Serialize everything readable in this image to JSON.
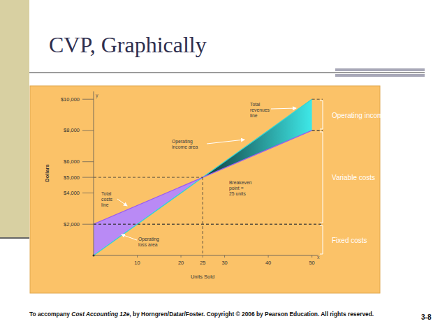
{
  "title": "CVP, Graphically",
  "footer": {
    "lead": "To accompany ",
    "italic": "Cost Accounting 12e",
    "rest": ", by Horngren/Datar/Foster. Copyright © 2006 by Pearson Education. All rights reserved."
  },
  "page_number": "3-8",
  "chart_data": {
    "type": "line",
    "x_label": "Units Sold",
    "y_label": "Dollars",
    "x_axis_symbol": "x",
    "y_axis_symbol": "y",
    "x": [
      0,
      25,
      50
    ],
    "series": [
      {
        "name": "Total revenues line",
        "color": "#2fd6d6",
        "values": [
          0,
          5000,
          10000
        ]
      },
      {
        "name": "Total costs line",
        "color": "#9a5cf0",
        "values": [
          2000,
          5000,
          8000
        ]
      }
    ],
    "areas": [
      {
        "name": "Operating loss area",
        "color": "#b98af5"
      },
      {
        "name": "Operating income area",
        "color": "#3ee8e8"
      }
    ],
    "breakeven": {
      "label": "Breakeven point = 25 units",
      "x": 25,
      "y": 5000
    },
    "brackets": [
      {
        "label": "Operating income",
        "from": 8000,
        "to": 10000
      },
      {
        "label": "Variable costs",
        "from": 2000,
        "to": 8000
      },
      {
        "label": "Fixed costs",
        "from": 0,
        "to": 2000
      }
    ],
    "xlim": [
      0,
      51.5
    ],
    "ylim": [
      0,
      10500
    ],
    "xticks": [
      10,
      20,
      25,
      30,
      40,
      50
    ],
    "yticks": [
      {
        "value": 2000,
        "label": "$2,000"
      },
      {
        "value": 4000,
        "label": "$4,000"
      },
      {
        "value": 5000,
        "label": "$5,000"
      },
      {
        "value": 6000,
        "label": "$6,000"
      },
      {
        "value": 8000,
        "label": "$8,000"
      },
      {
        "value": 10000,
        "label": "$10,000"
      }
    ],
    "grid": false
  }
}
